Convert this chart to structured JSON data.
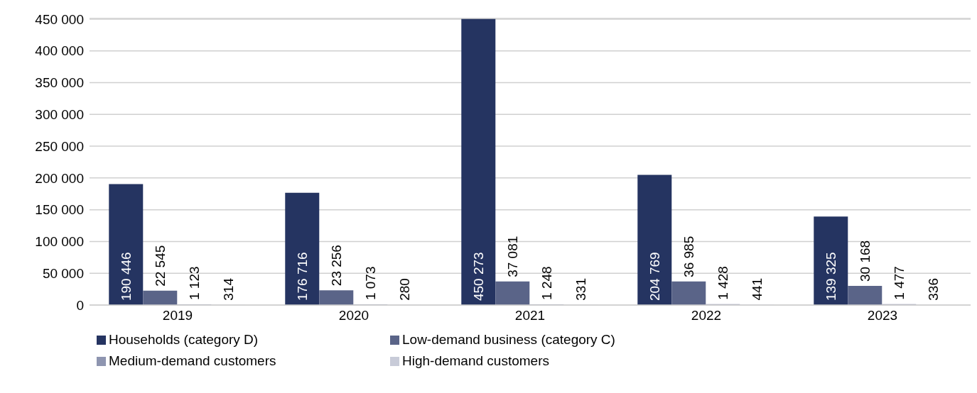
{
  "chart_data": {
    "type": "bar",
    "categories": [
      "2019",
      "2020",
      "2021",
      "2022",
      "2023"
    ],
    "series": [
      {
        "name": "Households (category D)",
        "color": "#253461",
        "values": [
          190446,
          176716,
          450273,
          204769,
          139325
        ],
        "value_labels": [
          "190 446",
          "176 716",
          "450 273",
          "204 769",
          "139 325"
        ]
      },
      {
        "name": "Low-demand business (category C)",
        "color": "#5a6488",
        "values": [
          22545,
          23256,
          37081,
          36985,
          30168
        ],
        "value_labels": [
          "22 545",
          "23 256",
          "37 081",
          "36 985",
          "30 168"
        ]
      },
      {
        "name": "Medium-demand customers",
        "color": "#8e95b0",
        "values": [
          1123,
          1073,
          1248,
          1428,
          1477
        ],
        "value_labels": [
          "1 123",
          "1 073",
          "1 248",
          "1 428",
          "1 477"
        ]
      },
      {
        "name": "High-demand customers",
        "color": "#c8cbd8",
        "values": [
          314,
          280,
          331,
          441,
          336
        ],
        "value_labels": [
          "314",
          "280",
          "331",
          "441",
          "336"
        ]
      }
    ],
    "ylim": [
      0,
      451000
    ],
    "yticks": [
      {
        "value": 0,
        "label": "0"
      },
      {
        "value": 50000,
        "label": "50 000"
      },
      {
        "value": 100000,
        "label": "100 000"
      },
      {
        "value": 150000,
        "label": "150 000"
      },
      {
        "value": 200000,
        "label": "200 000"
      },
      {
        "value": 250000,
        "label": "250 000"
      },
      {
        "value": 300000,
        "label": "300 000"
      },
      {
        "value": 350000,
        "label": "350 000"
      },
      {
        "value": 400000,
        "label": "400 000"
      },
      {
        "value": 450000,
        "label": "450 000"
      }
    ],
    "grid": "y",
    "legend": "bottom"
  }
}
